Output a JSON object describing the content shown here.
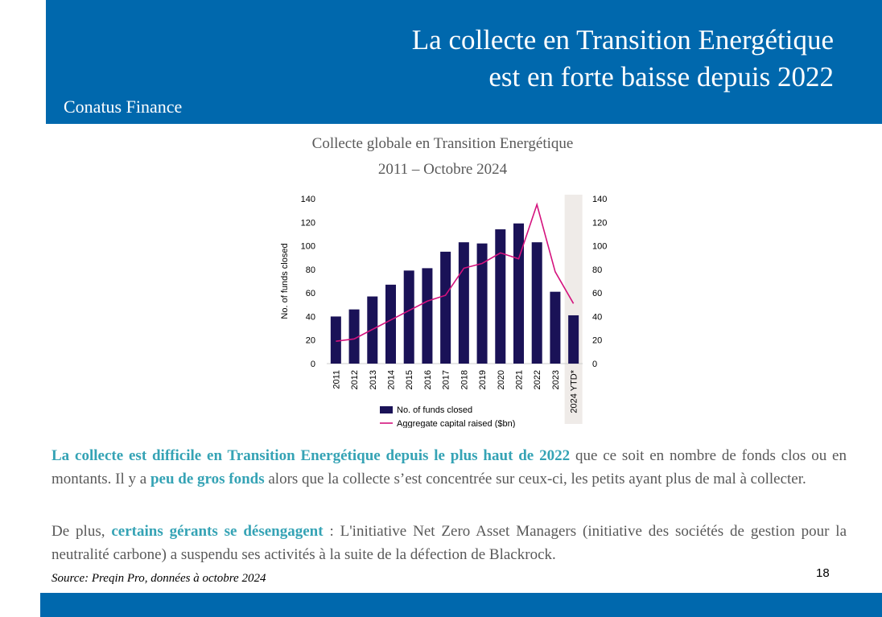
{
  "header": {
    "title_line1": "La collecte en Transition Energétique",
    "title_line2": "est en forte baisse depuis 2022",
    "brand": "Conatus Finance"
  },
  "colors": {
    "brand_blue": "#0068ad",
    "bar": "#1a1257",
    "line": "#d4127d",
    "highlight": "#35a3b5",
    "ytd_shade": "#efebe8"
  },
  "chart_title_line1": "Collecte globale en Transition Energétique",
  "chart_title_line2": "2011 – Octobre 2024",
  "chart_data": {
    "type": "bar",
    "categories": [
      "2011",
      "2012",
      "2013",
      "2014",
      "2015",
      "2016",
      "2017",
      "2018",
      "2019",
      "2020",
      "2021",
      "2022",
      "2023",
      "2024 YTD*"
    ],
    "series": [
      {
        "name": "No. of funds closed",
        "type": "bar",
        "axis": "left",
        "values": [
          40,
          46,
          57,
          67,
          79,
          81,
          95,
          103,
          102,
          114,
          119,
          103,
          61,
          41
        ]
      },
      {
        "name": "Aggregate capital raised ($bn)",
        "type": "line",
        "axis": "right",
        "values": [
          19,
          21,
          29,
          37,
          45,
          53,
          58,
          81,
          85,
          94,
          89,
          135,
          78,
          51
        ]
      }
    ],
    "ylabel": "No. of funds closed",
    "ylim": [
      0,
      140
    ],
    "y_ticks": [
      "0",
      "20",
      "40",
      "60",
      "80",
      "100",
      "120",
      "140"
    ],
    "y2lim": [
      0,
      140
    ],
    "y2_ticks": [
      "0",
      "20",
      "40",
      "60",
      "80",
      "100",
      "120",
      "140"
    ],
    "highlighted_category": "2024 YTD*",
    "legend_position": "bottom"
  },
  "paragraph1": {
    "highlight1": "La collecte est difficile en Transition Energétique depuis le plus haut de 2022",
    "text1": " que ce soit en nombre de fonds clos ou en montants. Il y a ",
    "highlight2": "peu de gros fonds",
    "text2": " alors que la collecte s’est concentrée sur ceux-ci, les petits ayant plus de mal à collecter."
  },
  "paragraph2": {
    "text1": "De plus, ",
    "highlight1": "certains gérants se désengagent",
    "text2": " : L'initiative Net Zero Asset Managers (initiative des sociétés de gestion pour la neutralité carbone) a suspendu ses activités à la suite de la défection de Blackrock."
  },
  "source": "Source: Preqin Pro, données à octobre 2024",
  "page_number": "18"
}
